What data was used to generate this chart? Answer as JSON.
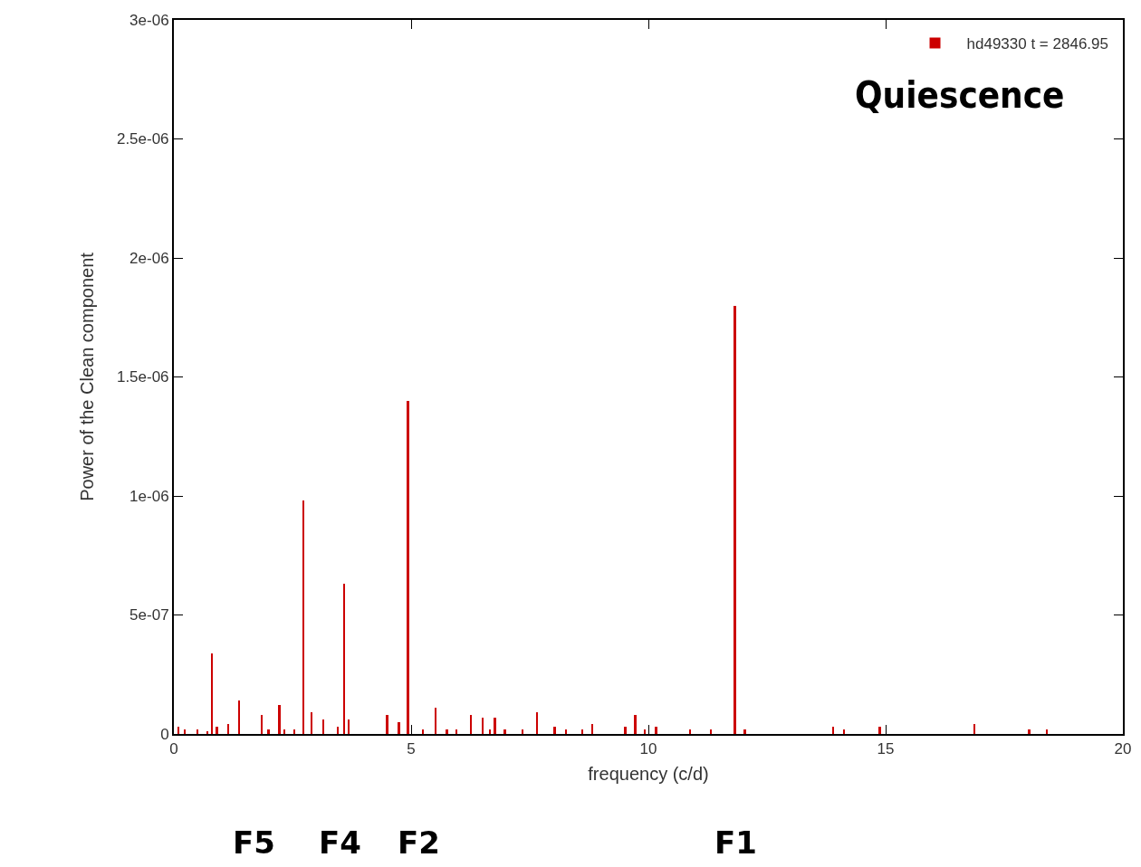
{
  "chart_data": {
    "type": "bar",
    "xlabel": "frequency (c/d)",
    "ylabel": "Power of the Clean component",
    "x": [
      0.1,
      0.23,
      0.5,
      0.71,
      0.81,
      0.91,
      1.15,
      1.38,
      1.86,
      2.0,
      2.23,
      2.33,
      2.54,
      2.74,
      2.91,
      3.15,
      3.46,
      3.59,
      3.69,
      4.5,
      4.75,
      4.94,
      5.25,
      5.52,
      5.76,
      5.96,
      6.27,
      6.51,
      6.67,
      6.77,
      6.98,
      7.35,
      7.66,
      8.03,
      8.27,
      8.61,
      8.82,
      9.52,
      9.73,
      9.93,
      10.17,
      10.88,
      11.32,
      11.83,
      12.04,
      13.9,
      14.13,
      14.88,
      16.88,
      18.03,
      18.4
    ],
    "series": [
      {
        "name": "hd49330 t = 2846.95",
        "color": "#cc0000",
        "values": [
          3e-08,
          2e-08,
          2e-08,
          1e-08,
          3.4e-07,
          3e-08,
          4e-08,
          1.4e-07,
          8e-08,
          2e-08,
          1.2e-07,
          2e-08,
          2e-08,
          9.8e-07,
          9e-08,
          6e-08,
          3e-08,
          6.3e-07,
          6e-08,
          8e-08,
          5e-08,
          1.4e-06,
          2e-08,
          1.1e-07,
          2e-08,
          2e-08,
          8e-08,
          7e-08,
          2e-08,
          7e-08,
          2e-08,
          2e-08,
          9e-08,
          3e-08,
          2e-08,
          2e-08,
          4e-08,
          3e-08,
          8e-08,
          2e-08,
          3e-08,
          2e-08,
          2e-08,
          1.8e-06,
          2e-08,
          3e-08,
          2e-08,
          3e-08,
          4e-08,
          2e-08,
          2e-08
        ]
      }
    ],
    "xlim": [
      0,
      20
    ],
    "xticks": [
      0,
      5,
      10,
      15,
      20
    ],
    "ylim": [
      0,
      3e-06
    ],
    "yticks": [
      0,
      {
        "value": 5e-07,
        "label": "5e-07"
      },
      {
        "value": 1e-06,
        "label": "1e-06"
      },
      {
        "value": 1.5e-06,
        "label": "1.5e-06"
      },
      {
        "value": 2e-06,
        "label": "2e-06"
      },
      {
        "value": 2.5e-06,
        "label": "2.5e-06"
      },
      {
        "value": 3e-06,
        "label": "3e-06"
      }
    ],
    "grid": false,
    "legend": "top right",
    "annotations": [
      "Quiescence",
      "F5",
      "F4",
      "F2",
      "F1"
    ]
  }
}
